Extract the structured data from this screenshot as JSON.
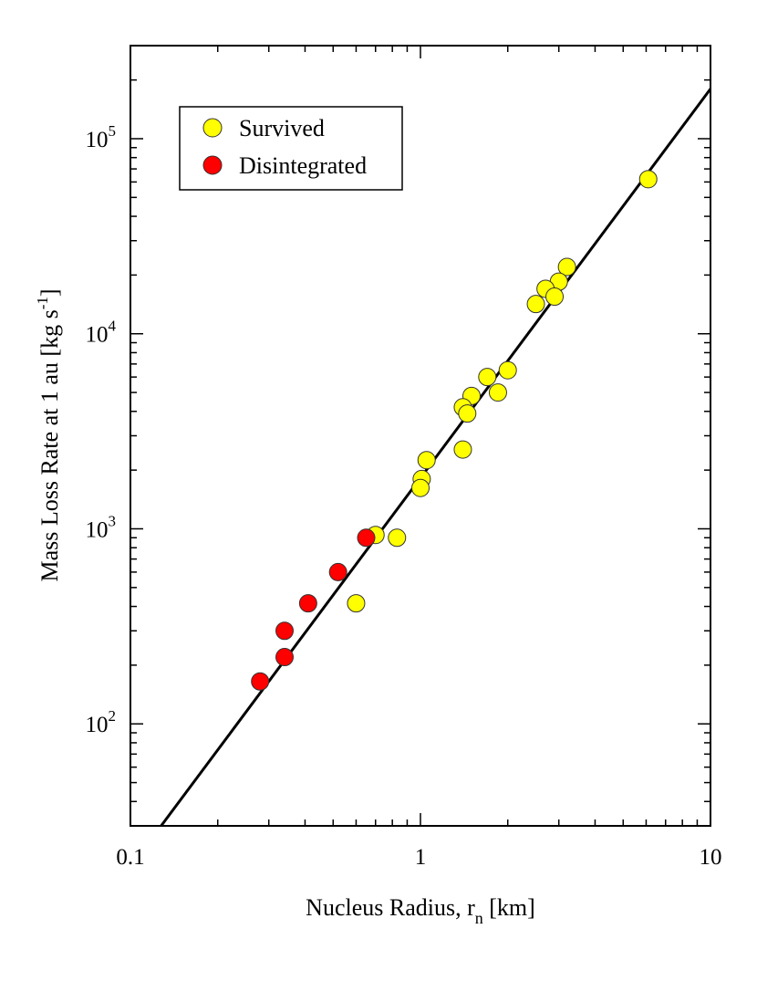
{
  "chart_data": {
    "type": "scatter",
    "xscale": "log",
    "yscale": "log",
    "xlim": [
      0.1,
      10
    ],
    "ylim": [
      30,
      300000
    ],
    "xlabel": {
      "main": "Nucleus Radius, r",
      "sub": "n",
      "unit": " [km]"
    },
    "ylabel": {
      "main": "Mass Loss Rate at 1 au [kg s",
      "sup": "-1",
      "end": "]"
    },
    "x_ticks": [
      {
        "value": 0.1,
        "label": "0.1"
      },
      {
        "value": 1,
        "label": "1"
      },
      {
        "value": 10,
        "label": "10"
      }
    ],
    "y_ticks": [
      {
        "value": 100,
        "base": "10",
        "exp": "2"
      },
      {
        "value": 1000,
        "base": "10",
        "exp": "3"
      },
      {
        "value": 10000,
        "base": "10",
        "exp": "4"
      },
      {
        "value": 100000,
        "base": "10",
        "exp": "5"
      }
    ],
    "legend": {
      "position": "top-left",
      "entries": [
        {
          "label": "Survived",
          "color": "#ffff00"
        },
        {
          "label": "Disintegrated",
          "color": "#ff0000"
        }
      ]
    },
    "series": [
      {
        "name": "Survived",
        "color": "#ffff00",
        "points": [
          [
            6.1,
            62000
          ],
          [
            3.2,
            22000
          ],
          [
            3.0,
            18500
          ],
          [
            2.7,
            17000
          ],
          [
            2.9,
            15500
          ],
          [
            2.5,
            14200
          ],
          [
            2.0,
            6500
          ],
          [
            1.7,
            6000
          ],
          [
            1.85,
            5000
          ],
          [
            1.5,
            4800
          ],
          [
            1.4,
            4200
          ],
          [
            1.45,
            3900
          ],
          [
            1.4,
            2550
          ],
          [
            1.05,
            2250
          ],
          [
            1.01,
            1800
          ],
          [
            1.0,
            1620
          ],
          [
            0.83,
            900
          ],
          [
            0.7,
            930
          ],
          [
            0.6,
            415
          ]
        ]
      },
      {
        "name": "Disintegrated",
        "color": "#ff0000",
        "points": [
          [
            0.65,
            900
          ],
          [
            0.52,
            600
          ],
          [
            0.41,
            415
          ],
          [
            0.34,
            300
          ],
          [
            0.34,
            220
          ],
          [
            0.28,
            165
          ]
        ]
      }
    ],
    "fit_line": {
      "color": "#000000",
      "points": [
        [
          0.1276,
          30
        ],
        [
          10,
          180000
        ]
      ]
    }
  }
}
